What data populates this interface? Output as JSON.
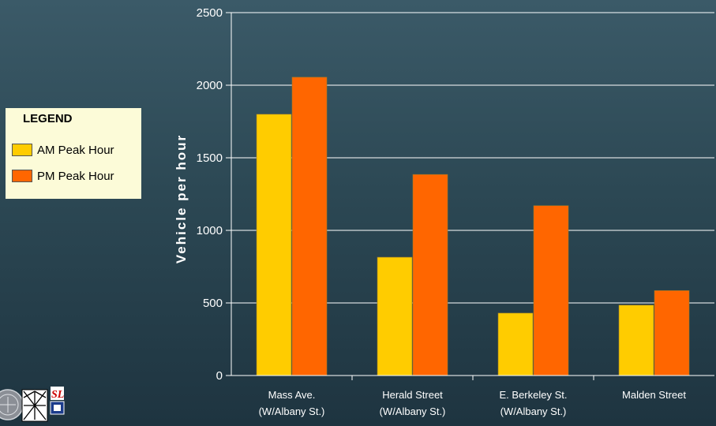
{
  "legend": {
    "title": "LEGEND",
    "items": [
      {
        "label": "AM Peak Hour",
        "color": "#ffcc00"
      },
      {
        "label": "PM Peak Hour",
        "color": "#ff6600"
      }
    ]
  },
  "chart_data": {
    "type": "bar",
    "ylabel": "Vehicle per hour",
    "xlabel": "",
    "ylim": [
      0,
      2500
    ],
    "yticks": [
      0,
      500,
      1000,
      1500,
      2000,
      2500
    ],
    "grid": true,
    "legend_position": "left",
    "categories": [
      [
        "Mass Ave.",
        "(W/Albany St.)"
      ],
      [
        "Herald Street",
        "(W/Albany St.)"
      ],
      [
        "E. Berkeley St.",
        "(W/Albany St.)"
      ],
      [
        "Malden Street"
      ]
    ],
    "series": [
      {
        "name": "AM Peak Hour",
        "color": "#ffcc00",
        "values": [
          1800,
          815,
          430,
          485
        ]
      },
      {
        "name": "PM Peak Hour",
        "color": "#ff6600",
        "values": [
          2055,
          1385,
          1170,
          585
        ]
      }
    ]
  },
  "logos": [
    {
      "icon": "seal-icon"
    },
    {
      "icon": "bridge-icon"
    },
    {
      "icon": "sl-logo-icon"
    }
  ]
}
